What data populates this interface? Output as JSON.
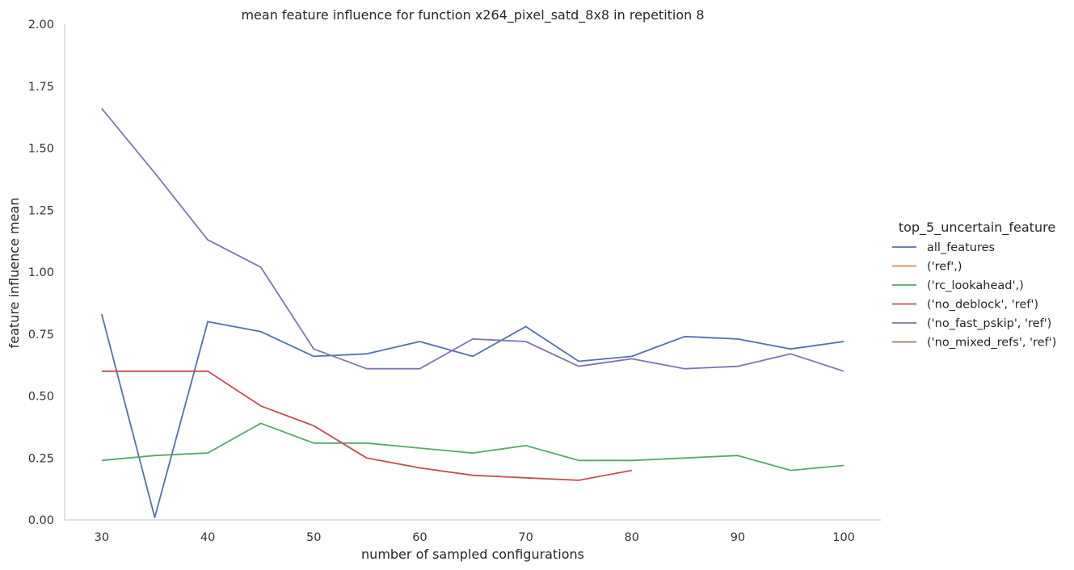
{
  "chart_data": {
    "type": "line",
    "title": "mean feature influence for function x264_pixel_satd_8x8 in repetition 8",
    "xlabel": "number of sampled configurations",
    "ylabel": "feature influence mean",
    "xlim": [
      26.5,
      103.5
    ],
    "ylim": [
      0,
      2.0
    ],
    "xticks": [
      30,
      40,
      50,
      60,
      70,
      80,
      90,
      100
    ],
    "yticks": [
      0.0,
      0.25,
      0.5,
      0.75,
      1.0,
      1.25,
      1.5,
      1.75,
      2.0
    ],
    "ytick_labels": [
      "0.00",
      "0.25",
      "0.50",
      "0.75",
      "1.00",
      "1.25",
      "1.50",
      "1.75",
      "2.00"
    ],
    "grid": false,
    "legend": {
      "title": "top_5_uncertain_feature",
      "placement": "right"
    },
    "series": [
      {
        "name": "all_features",
        "color": "#4c72b0",
        "x": [
          30,
          35,
          40,
          45,
          50,
          55,
          60,
          65,
          70,
          75,
          80,
          85,
          90,
          95,
          100
        ],
        "y": [
          0.83,
          0.01,
          0.8,
          0.76,
          0.66,
          0.67,
          0.72,
          0.66,
          0.78,
          0.64,
          0.66,
          0.74,
          0.73,
          0.69,
          0.72
        ]
      },
      {
        "name": "('ref',)",
        "color": "#dd8452",
        "x": [],
        "y": []
      },
      {
        "name": "('rc_lookahead',)",
        "color": "#55a868",
        "x": [
          30,
          35,
          40,
          45,
          50,
          55,
          60,
          65,
          70,
          75,
          80,
          85,
          90,
          95,
          100
        ],
        "y": [
          0.24,
          0.26,
          0.27,
          0.39,
          0.31,
          0.31,
          0.29,
          0.27,
          0.3,
          0.24,
          0.24,
          0.25,
          0.26,
          0.2,
          0.22
        ]
      },
      {
        "name": "('no_deblock', 'ref')",
        "color": "#c44e52",
        "x": [
          30,
          35,
          40,
          45,
          50,
          55,
          60,
          65,
          70,
          75,
          80
        ],
        "y": [
          0.6,
          0.6,
          0.6,
          0.46,
          0.38,
          0.25,
          0.21,
          0.18,
          0.17,
          0.16,
          0.2
        ]
      },
      {
        "name": "('no_fast_pskip', 'ref')",
        "color": "#8172b3",
        "x": [
          30,
          35,
          40,
          45,
          50,
          55,
          60,
          65,
          70,
          75,
          80,
          85,
          90,
          95,
          100
        ],
        "y": [
          1.66,
          1.4,
          1.13,
          1.02,
          0.69,
          0.61,
          0.61,
          0.73,
          0.72,
          0.62,
          0.65,
          0.61,
          0.62,
          0.67,
          0.6
        ]
      },
      {
        "name": "('no_mixed_refs', 'ref')",
        "color": "#937860",
        "x": [],
        "y": []
      }
    ]
  }
}
